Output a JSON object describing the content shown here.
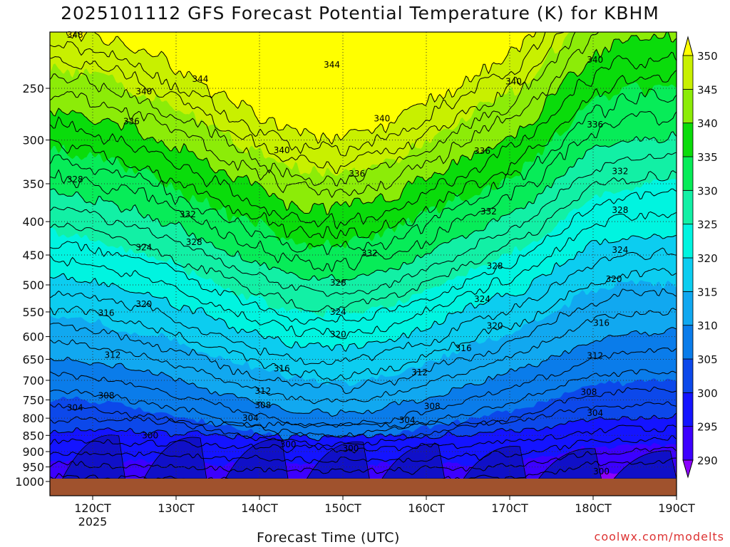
{
  "chart_data": {
    "type": "filled-contour",
    "title": "2025101112 GFS Forecast Potential Temperature (K) for KBHM",
    "xlabel": "Forecast Time (UTC)",
    "ylabel": "",
    "x_ticks": [
      "120CT",
      "130CT",
      "140CT",
      "150CT",
      "160CT",
      "170CT",
      "180CT",
      "190CT"
    ],
    "x_sublabel": "2025",
    "y_ticks": [
      250,
      300,
      350,
      400,
      450,
      500,
      550,
      600,
      650,
      700,
      750,
      800,
      850,
      900,
      950,
      1000
    ],
    "ylim": [
      1000,
      200
    ],
    "colorbar": {
      "levels": [
        290,
        295,
        300,
        305,
        310,
        315,
        320,
        325,
        330,
        335,
        340,
        345,
        350
      ],
      "colors": [
        "#8c00ff",
        "#3c00ff",
        "#1414ff",
        "#0c48ea",
        "#0a7cea",
        "#11a8f0",
        "#0ccdf0",
        "#00f4e0",
        "#12f0a5",
        "#07ec58",
        "#0adc0b",
        "#8cec08",
        "#c8f000",
        "#ffff00"
      ]
    },
    "contour_labels": [
      {
        "text": "348",
        "t": 0.04,
        "p": 207
      },
      {
        "text": "344",
        "t": 0.45,
        "p": 230
      },
      {
        "text": "344",
        "t": 0.24,
        "p": 242
      },
      {
        "text": "340",
        "t": 0.15,
        "p": 253
      },
      {
        "text": "340",
        "t": 0.74,
        "p": 244
      },
      {
        "text": "340",
        "t": 0.87,
        "p": 226
      },
      {
        "text": "340",
        "t": 0.53,
        "p": 278
      },
      {
        "text": "340",
        "t": 0.37,
        "p": 311
      },
      {
        "text": "336",
        "t": 0.13,
        "p": 281
      },
      {
        "text": "336",
        "t": 0.87,
        "p": 284
      },
      {
        "text": "336",
        "t": 0.69,
        "p": 312
      },
      {
        "text": "336",
        "t": 0.49,
        "p": 338
      },
      {
        "text": "332",
        "t": 0.91,
        "p": 335
      },
      {
        "text": "332",
        "t": 0.7,
        "p": 386
      },
      {
        "text": "332",
        "t": 0.22,
        "p": 390
      },
      {
        "text": "332",
        "t": 0.51,
        "p": 447
      },
      {
        "text": "328",
        "t": 0.04,
        "p": 345
      },
      {
        "text": "328",
        "t": 0.91,
        "p": 384
      },
      {
        "text": "328",
        "t": 0.23,
        "p": 430
      },
      {
        "text": "328",
        "t": 0.71,
        "p": 468
      },
      {
        "text": "328",
        "t": 0.46,
        "p": 496
      },
      {
        "text": "324",
        "t": 0.15,
        "p": 438
      },
      {
        "text": "324",
        "t": 0.91,
        "p": 442
      },
      {
        "text": "324",
        "t": 0.69,
        "p": 526
      },
      {
        "text": "324",
        "t": 0.46,
        "p": 550
      },
      {
        "text": "320",
        "t": 0.9,
        "p": 490
      },
      {
        "text": "320",
        "t": 0.15,
        "p": 535
      },
      {
        "text": "320",
        "t": 0.71,
        "p": 578
      },
      {
        "text": "320",
        "t": 0.46,
        "p": 595
      },
      {
        "text": "316",
        "t": 0.88,
        "p": 572
      },
      {
        "text": "316",
        "t": 0.09,
        "p": 552
      },
      {
        "text": "316",
        "t": 0.66,
        "p": 625
      },
      {
        "text": "316",
        "t": 0.37,
        "p": 672
      },
      {
        "text": "312",
        "t": 0.1,
        "p": 640
      },
      {
        "text": "312",
        "t": 0.87,
        "p": 642
      },
      {
        "text": "312",
        "t": 0.59,
        "p": 681
      },
      {
        "text": "312",
        "t": 0.34,
        "p": 727
      },
      {
        "text": "308",
        "t": 0.09,
        "p": 739
      },
      {
        "text": "308",
        "t": 0.34,
        "p": 764
      },
      {
        "text": "308",
        "t": 0.61,
        "p": 767
      },
      {
        "text": "308",
        "t": 0.86,
        "p": 730
      },
      {
        "text": "304",
        "t": 0.04,
        "p": 771
      },
      {
        "text": "304",
        "t": 0.32,
        "p": 800
      },
      {
        "text": "304",
        "t": 0.57,
        "p": 806
      },
      {
        "text": "304",
        "t": 0.87,
        "p": 786
      },
      {
        "text": "300",
        "t": 0.16,
        "p": 850
      },
      {
        "text": "300",
        "t": 0.38,
        "p": 878
      },
      {
        "text": "300",
        "t": 0.48,
        "p": 890
      },
      {
        "text": "300",
        "t": 0.88,
        "p": 966
      }
    ]
  },
  "footer": {
    "xlabel": "Forecast Time (UTC)",
    "credit": "coolwx.com/modelts"
  },
  "colors": {
    "ground": "#a0522d",
    "line": "#000000"
  }
}
